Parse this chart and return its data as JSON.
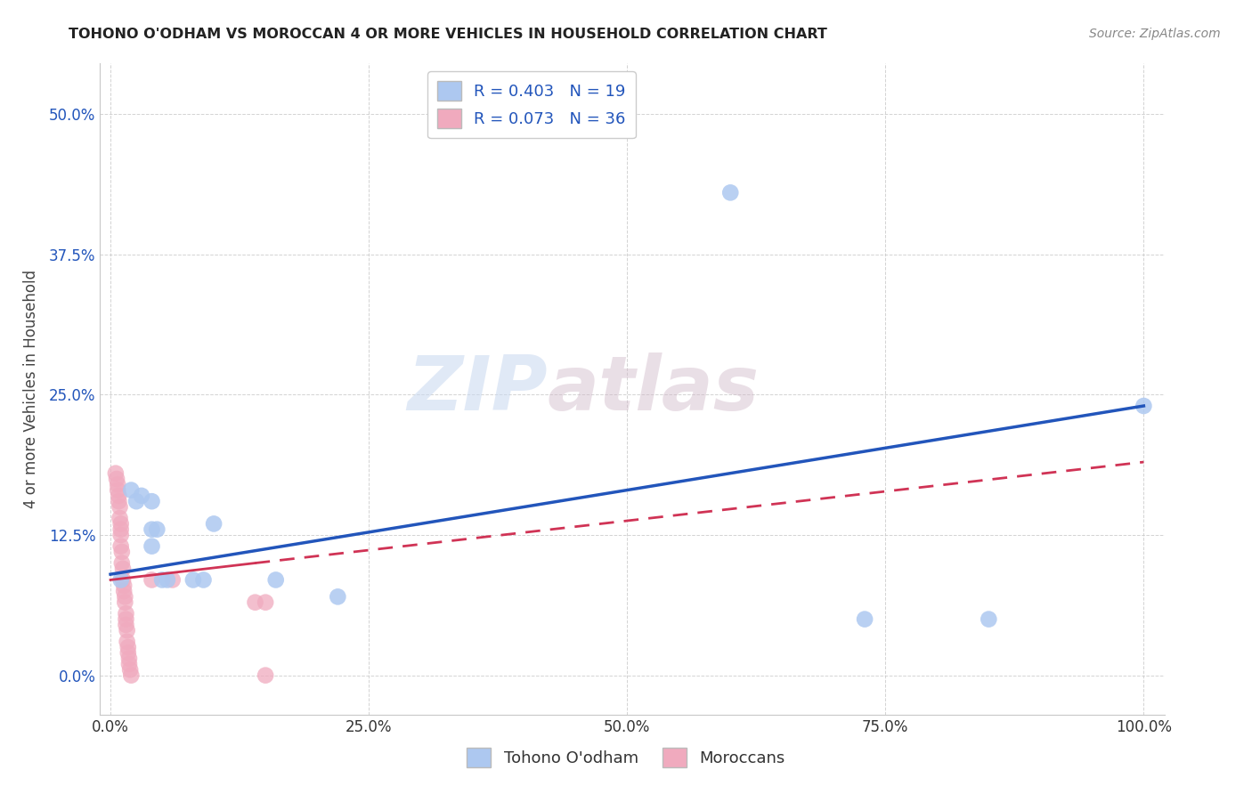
{
  "title": "TOHONO O'ODHAM VS MOROCCAN 4 OR MORE VEHICLES IN HOUSEHOLD CORRELATION CHART",
  "source": "Source: ZipAtlas.com",
  "ylabel": "4 or more Vehicles in Household",
  "xlabel": "",
  "xlim": [
    -0.01,
    1.02
  ],
  "ylim": [
    -0.035,
    0.545
  ],
  "xticks": [
    0.0,
    0.25,
    0.5,
    0.75,
    1.0
  ],
  "xtick_labels": [
    "0.0%",
    "25.0%",
    "50.0%",
    "75.0%",
    "100.0%"
  ],
  "ytick_labels": [
    "0.0%",
    "12.5%",
    "25.0%",
    "37.5%",
    "50.0%"
  ],
  "yticks": [
    0.0,
    0.125,
    0.25,
    0.375,
    0.5
  ],
  "blue_label": "Tohono O'odham",
  "pink_label": "Moroccans",
  "blue_R": 0.403,
  "blue_N": 19,
  "pink_R": 0.073,
  "pink_N": 36,
  "blue_color": "#adc8f0",
  "pink_color": "#f0aabe",
  "blue_line_color": "#2255bb",
  "pink_line_color": "#d03355",
  "blue_scatter": [
    [
      0.01,
      0.085
    ],
    [
      0.02,
      0.165
    ],
    [
      0.025,
      0.155
    ],
    [
      0.03,
      0.16
    ],
    [
      0.04,
      0.155
    ],
    [
      0.04,
      0.13
    ],
    [
      0.04,
      0.115
    ],
    [
      0.045,
      0.13
    ],
    [
      0.05,
      0.085
    ],
    [
      0.055,
      0.085
    ],
    [
      0.08,
      0.085
    ],
    [
      0.09,
      0.085
    ],
    [
      0.1,
      0.135
    ],
    [
      0.16,
      0.085
    ],
    [
      0.22,
      0.07
    ],
    [
      0.6,
      0.43
    ],
    [
      0.73,
      0.05
    ],
    [
      0.85,
      0.05
    ],
    [
      1.0,
      0.24
    ]
  ],
  "pink_scatter": [
    [
      0.005,
      0.18
    ],
    [
      0.006,
      0.175
    ],
    [
      0.007,
      0.17
    ],
    [
      0.007,
      0.165
    ],
    [
      0.008,
      0.16
    ],
    [
      0.008,
      0.155
    ],
    [
      0.009,
      0.15
    ],
    [
      0.009,
      0.14
    ],
    [
      0.01,
      0.135
    ],
    [
      0.01,
      0.13
    ],
    [
      0.01,
      0.125
    ],
    [
      0.01,
      0.115
    ],
    [
      0.011,
      0.11
    ],
    [
      0.011,
      0.1
    ],
    [
      0.012,
      0.095
    ],
    [
      0.012,
      0.085
    ],
    [
      0.013,
      0.08
    ],
    [
      0.013,
      0.075
    ],
    [
      0.014,
      0.07
    ],
    [
      0.014,
      0.065
    ],
    [
      0.015,
      0.055
    ],
    [
      0.015,
      0.05
    ],
    [
      0.015,
      0.045
    ],
    [
      0.016,
      0.04
    ],
    [
      0.016,
      0.03
    ],
    [
      0.017,
      0.025
    ],
    [
      0.017,
      0.02
    ],
    [
      0.018,
      0.015
    ],
    [
      0.018,
      0.01
    ],
    [
      0.019,
      0.005
    ],
    [
      0.02,
      0.0
    ],
    [
      0.04,
      0.085
    ],
    [
      0.06,
      0.085
    ],
    [
      0.14,
      0.065
    ],
    [
      0.15,
      0.065
    ],
    [
      0.15,
      0.0
    ]
  ],
  "blue_line_x0": 0.0,
  "blue_line_y0": 0.09,
  "blue_line_x1": 1.0,
  "blue_line_y1": 0.24,
  "pink_line_x0": 0.0,
  "pink_line_y0": 0.085,
  "pink_line_x_solid_end": 0.14,
  "pink_line_y_solid_end": 0.1,
  "pink_line_x1": 1.0,
  "pink_line_y1": 0.19,
  "watermark_zip": "ZIP",
  "watermark_atlas": "atlas",
  "grid_color": "#c8c8c8",
  "background_color": "#ffffff"
}
